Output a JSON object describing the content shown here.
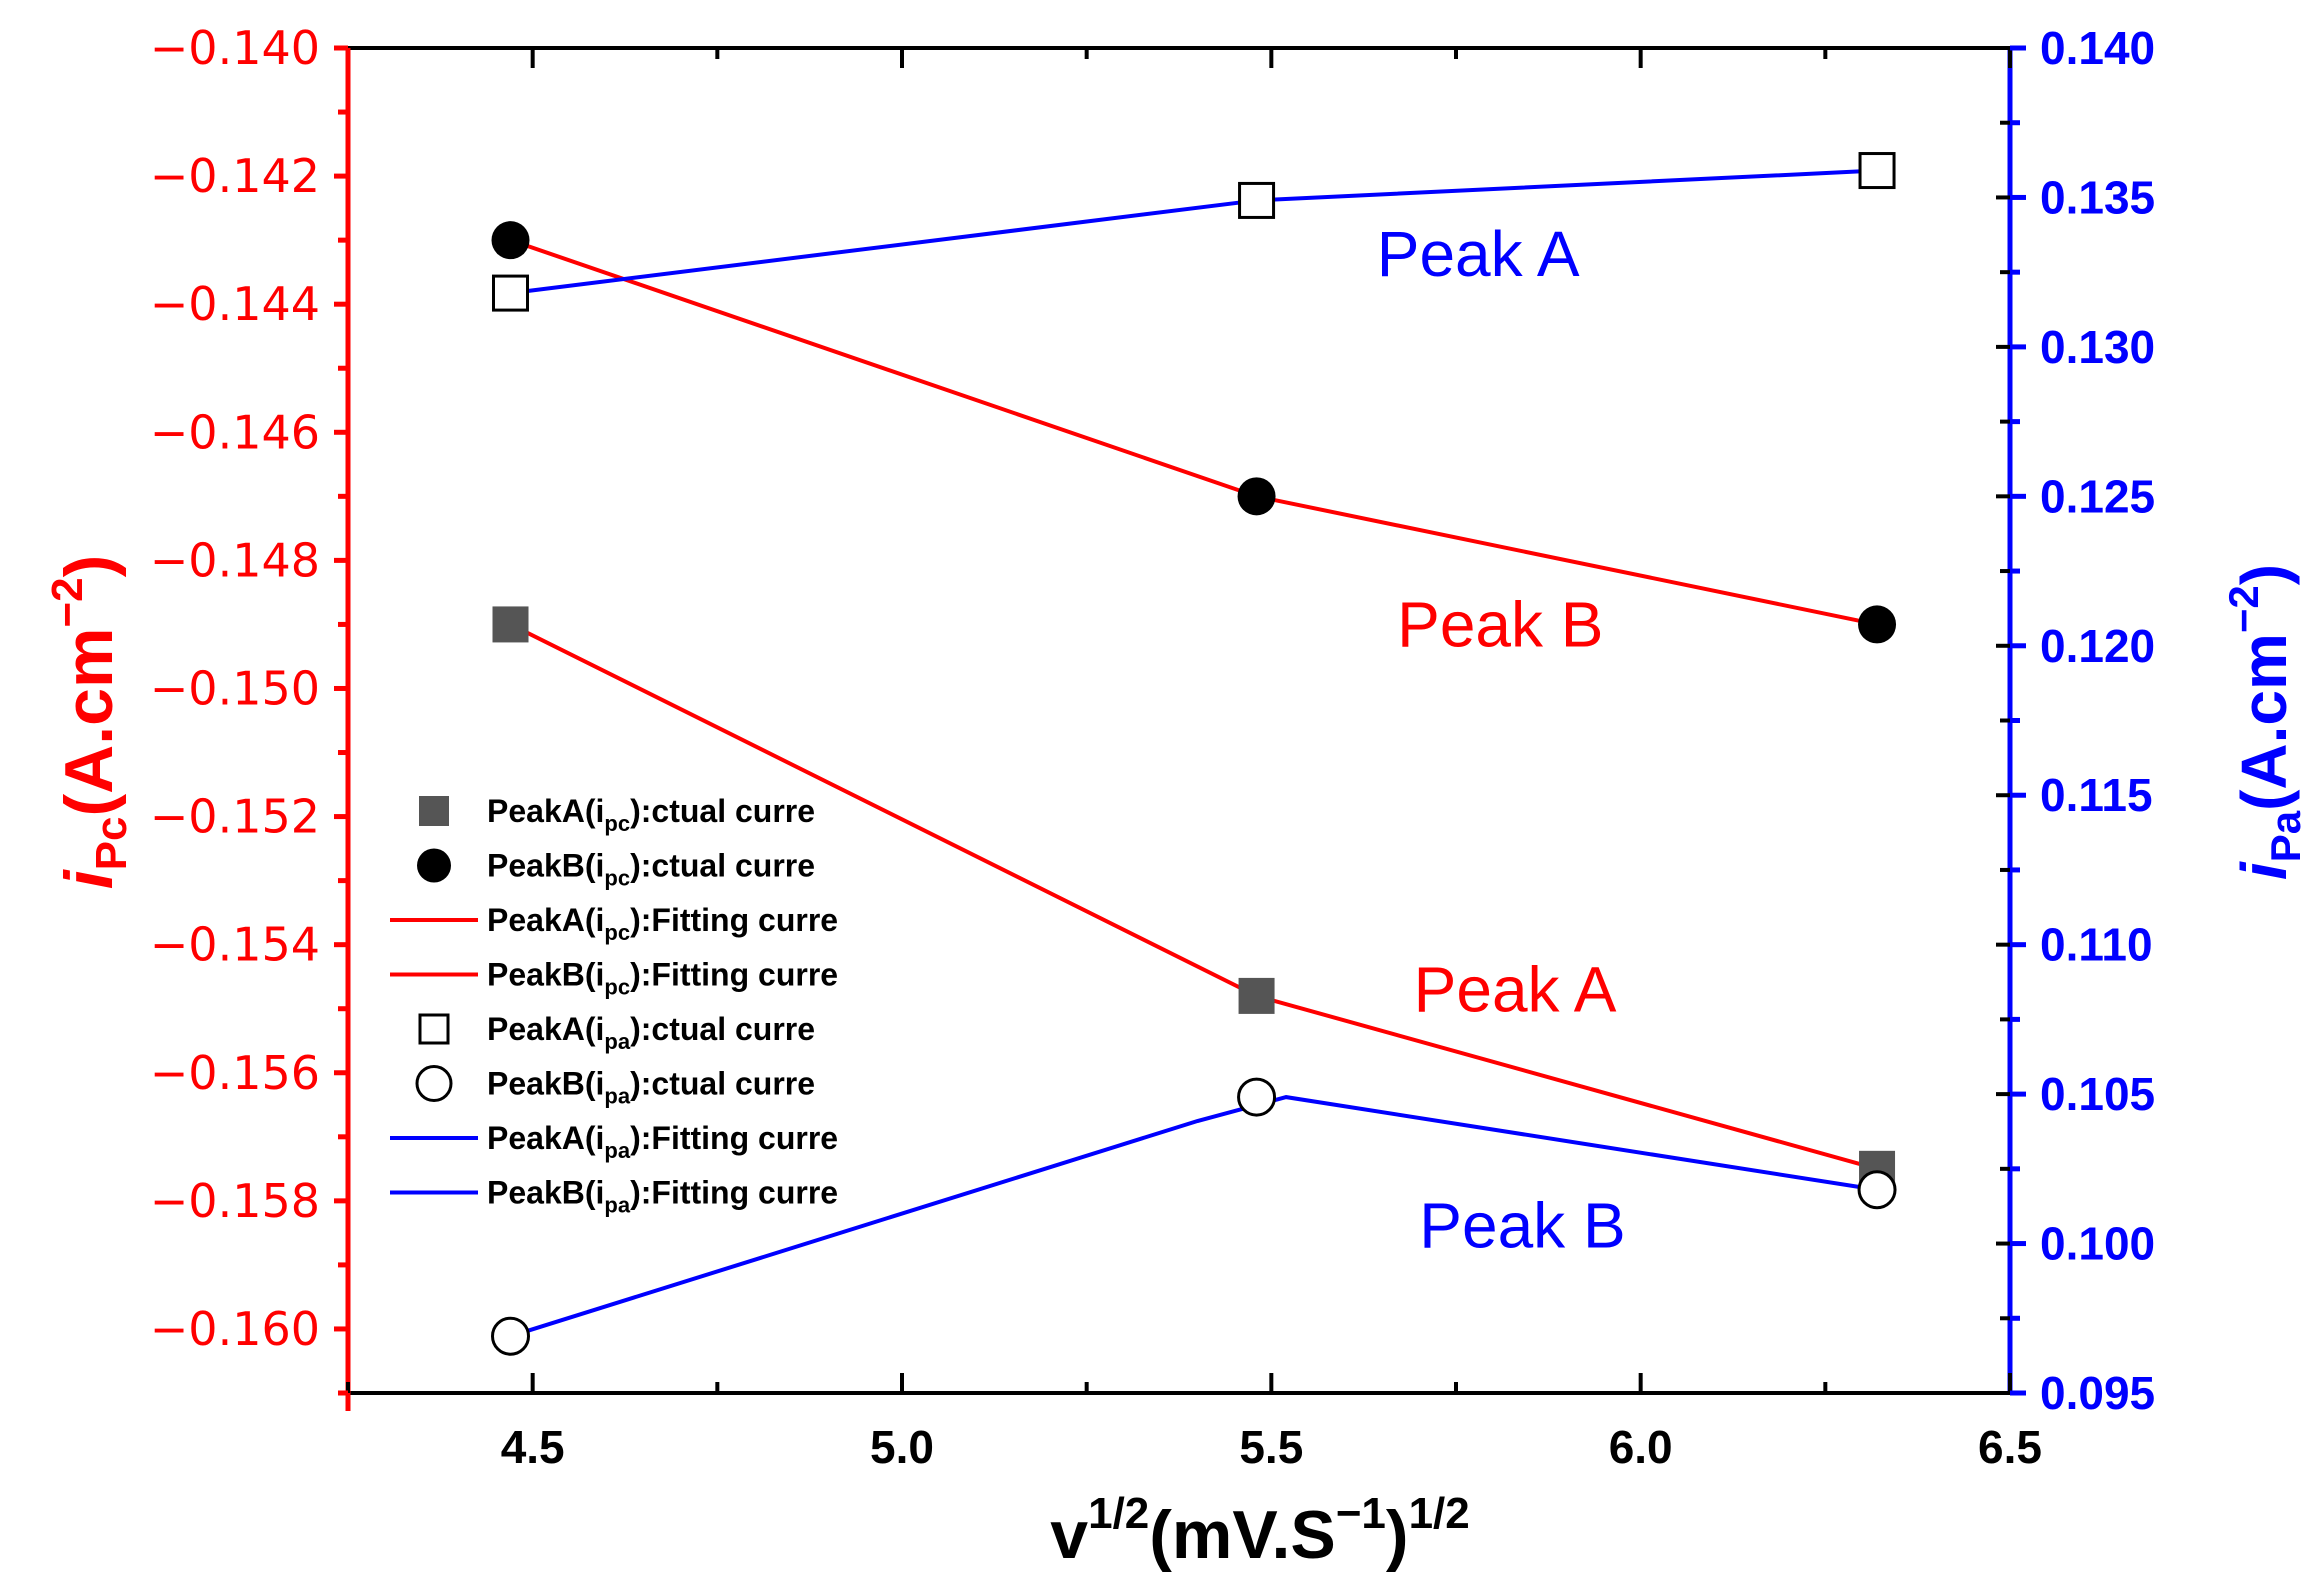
{
  "chart_data": {
    "type": "line",
    "colors": {
      "left_axis": "#ff0000",
      "right_axis": "#0000ff",
      "axis_black": "#000000",
      "square_fill": "#555555"
    },
    "x_axis": {
      "label_main": "v",
      "label_sup1": "1/2",
      "label_mid": "(mV.S",
      "label_sup2": "−1",
      "label_end": ")",
      "label_sup3": "1/2",
      "range": [
        4.25,
        6.5
      ],
      "ticks": [
        "4.5",
        "5.0",
        "5.5",
        "6.0",
        "6.5"
      ],
      "tick_values": [
        4.5,
        5.0,
        5.5,
        6.0,
        6.5
      ]
    },
    "y_left": {
      "label_i": "i",
      "label_sub": "Pc",
      "label_unit": "(A.cm",
      "label_sup": "−2",
      "label_close": ")",
      "range": [
        -0.161,
        -0.14
      ],
      "ticks": [
        "−0.140",
        "−0.142",
        "−0.144",
        "−0.146",
        "−0.148",
        "−0.150",
        "−0.152",
        "−0.154",
        "−0.156",
        "−0.158",
        "−0.160"
      ],
      "tick_values": [
        -0.14,
        -0.142,
        -0.144,
        -0.146,
        -0.148,
        -0.15,
        -0.152,
        -0.154,
        -0.156,
        -0.158,
        -0.16
      ]
    },
    "y_right": {
      "label_i": "i",
      "label_sub": "Pa",
      "label_unit": "(A.cm",
      "label_sup": "−2",
      "label_close": ")",
      "range": [
        0.095,
        0.14
      ],
      "ticks": [
        "0.140",
        "0.135",
        "0.130",
        "0.125",
        "0.120",
        "0.115",
        "0.110",
        "0.105",
        "0.100",
        "0.095"
      ],
      "tick_values": [
        0.14,
        0.135,
        0.13,
        0.125,
        0.12,
        0.115,
        0.11,
        0.105,
        0.1,
        0.095
      ]
    },
    "series": [
      {
        "name": "PeakA(ipc):ctual curre",
        "axis": "left",
        "marker": "square-filled",
        "x": [
          4.47,
          5.48,
          6.32
        ],
        "y": [
          -0.149,
          -0.1548,
          -0.1575
        ]
      },
      {
        "name": "PeakB(ipc):ctual curre",
        "axis": "left",
        "marker": "circle-filled",
        "x": [
          4.47,
          5.48,
          6.32
        ],
        "y": [
          -0.143,
          -0.147,
          -0.149
        ]
      },
      {
        "name": "PeakA(ipc):Fitting curre",
        "axis": "left",
        "line": "red",
        "x": [
          4.47,
          5.48,
          6.32
        ],
        "y": [
          -0.149,
          -0.1548,
          -0.1575
        ]
      },
      {
        "name": "PeakB(ipc):Fitting curre",
        "axis": "left",
        "line": "red",
        "x": [
          4.47,
          5.48,
          6.32
        ],
        "y": [
          -0.143,
          -0.147,
          -0.149
        ]
      },
      {
        "name": "PeakA(ipa):ctual curre",
        "axis": "right",
        "marker": "square-open",
        "x": [
          4.47,
          5.48,
          6.32
        ],
        "y": [
          0.1318,
          0.1349,
          0.1359
        ]
      },
      {
        "name": "PeakB(ipa):ctual curre",
        "axis": "right",
        "marker": "circle-open",
        "x": [
          4.47,
          5.48,
          6.32
        ],
        "y": [
          0.0969,
          0.1049,
          0.1018
        ]
      },
      {
        "name": "PeakA(ipa):Fitting curre",
        "axis": "right",
        "line": "blue",
        "x": [
          4.47,
          5.48,
          6.32
        ],
        "y": [
          0.1318,
          0.1349,
          0.1359
        ]
      },
      {
        "name": "PeakB(ipa):Fitting curre",
        "axis": "right",
        "line": "blue",
        "x": [
          4.47,
          5.4,
          5.52,
          6.32
        ],
        "y": [
          0.0969,
          0.1041,
          0.1049,
          0.1018
        ]
      }
    ],
    "legend": {
      "placement": "center-left",
      "entries": [
        {
          "prefix": "PeakA(i",
          "sub": "pc",
          "suffix": "):ctual curre",
          "marker": "square-filled"
        },
        {
          "prefix": "PeakB(i",
          "sub": "pc",
          "suffix": "):ctual curre",
          "marker": "circle-filled"
        },
        {
          "prefix": "PeakA(i",
          "sub": "pc",
          "suffix": "):Fitting curre",
          "marker": "line-red"
        },
        {
          "prefix": "PeakB(i",
          "sub": "pc",
          "suffix": "):Fitting curre",
          "marker": "line-red"
        },
        {
          "prefix": "PeakA(i",
          "sub": "pa",
          "suffix": "):ctual curre",
          "marker": "square-open"
        },
        {
          "prefix": "PeakB(i",
          "sub": "pa",
          "suffix": "):ctual curre",
          "marker": "circle-open"
        },
        {
          "prefix": "PeakA(i",
          "sub": "pa",
          "suffix": "):Fitting curre",
          "marker": "line-blue"
        },
        {
          "prefix": "PeakB(i",
          "sub": "pa",
          "suffix": "):Fitting curre",
          "marker": "line-blue"
        }
      ]
    },
    "annotations": [
      {
        "text": "Peak A",
        "color": "blue",
        "x": 5.78,
        "y_axis": "right",
        "y": 0.1331
      },
      {
        "text": "Peak B",
        "color": "red",
        "x": 5.81,
        "y_axis": "left",
        "y": -0.149
      },
      {
        "text": "Peak A",
        "color": "red",
        "x": 5.83,
        "y_axis": "left",
        "y": -0.1547
      },
      {
        "text": "Peak B",
        "color": "blue",
        "x": 5.84,
        "y_axis": "right",
        "y": 0.1006
      }
    ]
  }
}
